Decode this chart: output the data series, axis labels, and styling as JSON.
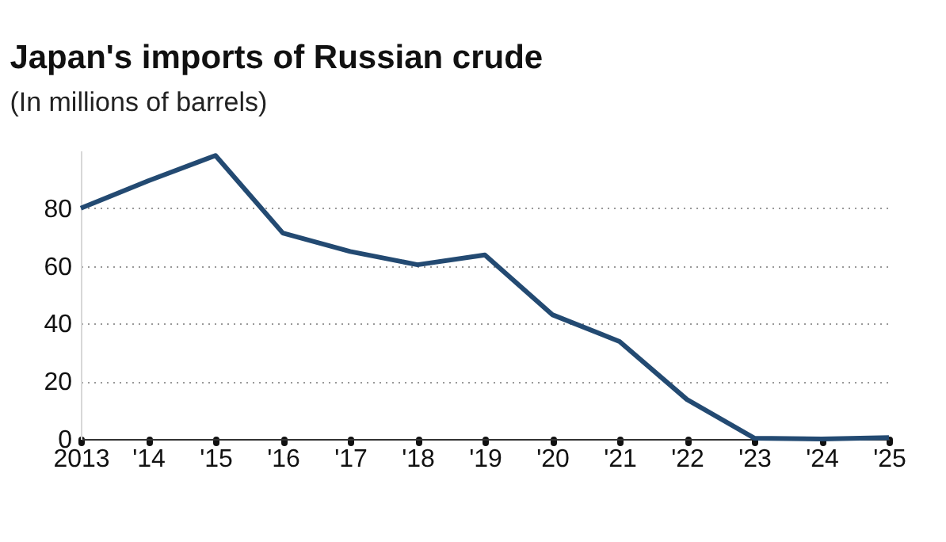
{
  "chart_data": {
    "type": "line",
    "title": "Japan's imports of Russian crude",
    "subtitle": "(In millions of barrels)",
    "categories": [
      "2013",
      "'14",
      "'15",
      "'16",
      "'17",
      "'18",
      "'19",
      "'20",
      "'21",
      "'22",
      "'23",
      "'24",
      "'25"
    ],
    "values": [
      80,
      89.5,
      98.3,
      71.4,
      65,
      60.4,
      63.8,
      43.1,
      33.8,
      13.7,
      0.3,
      0,
      0.5
    ],
    "color": "#234a72",
    "ylim": [
      0,
      100
    ],
    "yticks": [
      0,
      20,
      40,
      60,
      80
    ],
    "grid": "y"
  }
}
